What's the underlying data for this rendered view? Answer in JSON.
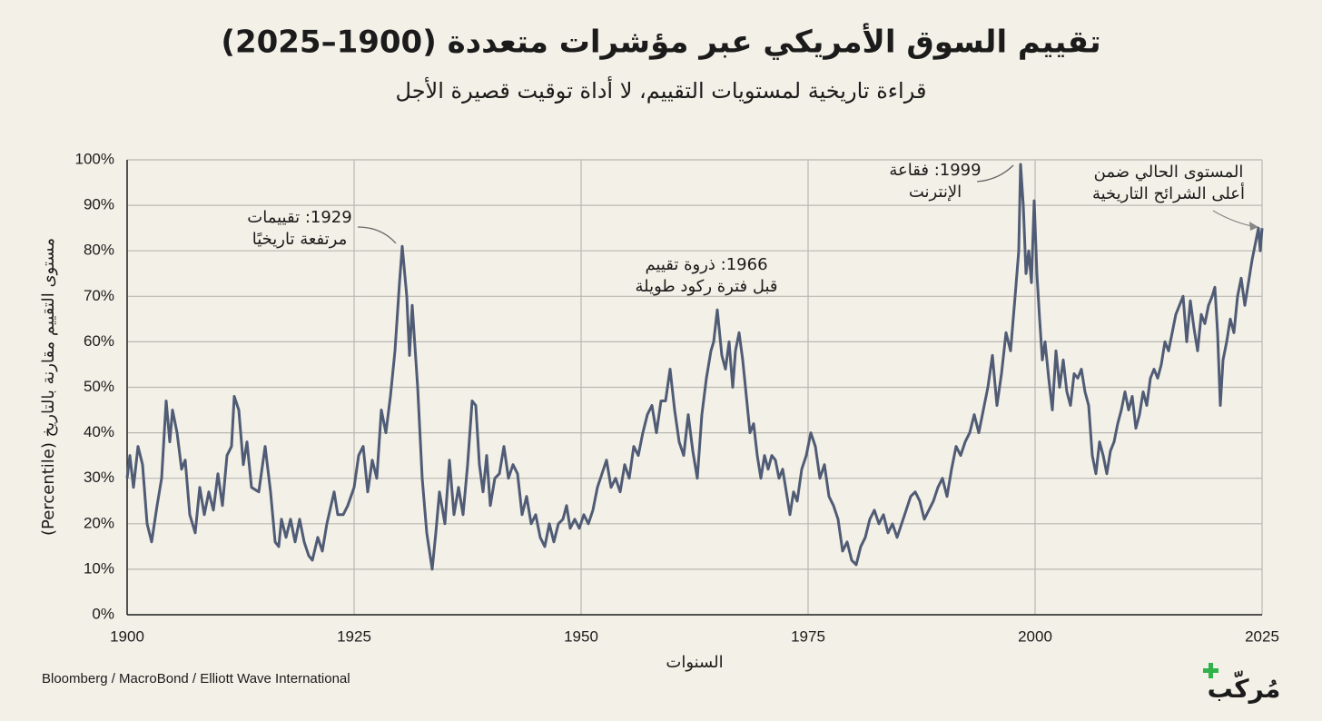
{
  "chart_data": {
    "type": "line",
    "title": "تقييم السوق الأمريكي عبر مؤشرات متعددة (1900–2025)",
    "subtitle": "قراءة تاريخية لمستويات التقييم، لا أداة توقيت قصيرة الأجل",
    "x_label": "السنوات",
    "y_label": "مستوى التقييم مقارنة بالتاريخ (Percentile)",
    "source": "Bloomberg / MacroBond / Elliott Wave International",
    "logo": "مُركّب",
    "color": "#505c75",
    "grid": true,
    "xlim": [
      1900,
      2025
    ],
    "xticks": [
      1900,
      1925,
      1950,
      1975,
      2000,
      2025
    ],
    "ylim": [
      0,
      100
    ],
    "yticks": [
      {
        "value": 0,
        "label": "0%"
      },
      {
        "value": 10,
        "label": "10%"
      },
      {
        "value": 20,
        "label": "20%"
      },
      {
        "value": 30,
        "label": "30%"
      },
      {
        "value": 40,
        "label": "40%"
      },
      {
        "value": 50,
        "label": "50%"
      },
      {
        "value": 60,
        "label": "60%"
      },
      {
        "value": 70,
        "label": "70%"
      },
      {
        "value": 80,
        "label": "80%"
      },
      {
        "value": 90,
        "label": "90%"
      },
      {
        "value": 100,
        "label": "100%"
      }
    ],
    "annotations": [
      {
        "lines": [
          "1929: تقييمات",
          "مرتفعة تاريخيًا"
        ]
      },
      {
        "lines": [
          "1966: ذروة تقييم",
          "قبل فترة ركود طويلة"
        ]
      },
      {
        "lines": [
          "1999: فقاعة",
          "الإنترنت"
        ]
      },
      {
        "lines": [
          "المستوى الحالي ضمن",
          "أعلى الشرائح التاريخية"
        ]
      }
    ],
    "x": [
      1900,
      1900.3,
      1900.7,
      1901.2,
      1901.7,
      1902.2,
      1902.7,
      1903.3,
      1903.8,
      1904.3,
      1904.7,
      1905.0,
      1905.5,
      1906.0,
      1906.4,
      1906.9,
      1907.5,
      1908.0,
      1908.5,
      1909.0,
      1909.5,
      1910.0,
      1910.5,
      1911.0,
      1911.5,
      1911.8,
      1912.3,
      1912.8,
      1913.2,
      1913.7,
      1914.5,
      1915.2,
      1915.8,
      1916.3,
      1916.7,
      1917.0,
      1917.5,
      1918.0,
      1918.5,
      1919.0,
      1919.5,
      1920.0,
      1920.4,
      1921.0,
      1921.5,
      1922.0,
      1922.8,
      1923.2,
      1923.8,
      1924.3,
      1925.0,
      1925.5,
      1926.0,
      1926.5,
      1927.0,
      1927.5,
      1928.0,
      1928.5,
      1929.0,
      1929.5,
      1930.0,
      1930.3,
      1930.8,
      1931.1,
      1931.4,
      1932.0,
      1932.5,
      1933.0,
      1933.6,
      1934.0,
      1934.4,
      1935.0,
      1935.5,
      1936.0,
      1936.5,
      1937.0,
      1937.5,
      1938.0,
      1938.4,
      1938.8,
      1939.2,
      1939.6,
      1940.0,
      1940.5,
      1941.0,
      1941.5,
      1942.0,
      1942.5,
      1943.0,
      1943.5,
      1944.0,
      1944.5,
      1945.0,
      1945.5,
      1946.0,
      1946.5,
      1947.0,
      1947.5,
      1948.0,
      1948.4,
      1948.8,
      1949.3,
      1949.8,
      1950.3,
      1950.8,
      1951.3,
      1951.8,
      1952.3,
      1952.8,
      1953.3,
      1953.8,
      1954.3,
      1954.8,
      1955.3,
      1955.8,
      1956.3,
      1956.8,
      1957.3,
      1957.8,
      1958.3,
      1958.8,
      1959.3,
      1959.8,
      1960.3,
      1960.8,
      1961.3,
      1961.8,
      1962.3,
      1962.8,
      1963.3,
      1963.8,
      1964.3,
      1964.6,
      1965.0,
      1965.5,
      1965.9,
      1966.3,
      1966.7,
      1967.0,
      1967.4,
      1967.8,
      1968.2,
      1968.6,
      1969.0,
      1969.4,
      1969.8,
      1970.2,
      1970.6,
      1971.0,
      1971.4,
      1971.8,
      1972.2,
      1972.6,
      1973.0,
      1973.4,
      1973.8,
      1974.3,
      1974.8,
      1975.3,
      1975.8,
      1976.3,
      1976.8,
      1977.3,
      1977.8,
      1978.3,
      1978.8,
      1979.3,
      1979.8,
      1980.3,
      1980.8,
      1981.3,
      1981.8,
      1982.3,
      1982.8,
      1983.3,
      1983.8,
      1984.3,
      1984.8,
      1985.3,
      1985.8,
      1986.3,
      1986.8,
      1987.3,
      1987.8,
      1988.3,
      1988.8,
      1989.3,
      1989.8,
      1990.3,
      1990.8,
      1991.3,
      1991.8,
      1992.3,
      1992.8,
      1993.3,
      1993.8,
      1994.3,
      1994.8,
      1995.3,
      1995.8,
      1996.3,
      1996.8,
      1997.3,
      1997.8,
      1998.2,
      1998.4,
      1998.7,
      1999.0,
      1999.3,
      1999.6,
      1999.9,
      2000.2,
      2000.5,
      2000.8,
      2001.1,
      2001.5,
      2001.9,
      2002.3,
      2002.7,
      2003.1,
      2003.5,
      2003.9,
      2004.3,
      2004.7,
      2005.1,
      2005.5,
      2005.9,
      2006.3,
      2006.7,
      2007.1,
      2007.5,
      2007.9,
      2008.3,
      2008.7,
      2009.1,
      2009.5,
      2009.9,
      2010.3,
      2010.7,
      2011.1,
      2011.5,
      2011.9,
      2012.3,
      2012.7,
      2013.1,
      2013.5,
      2013.9,
      2014.3,
      2014.7,
      2015.1,
      2015.5,
      2015.9,
      2016.3,
      2016.7,
      2017.1,
      2017.5,
      2017.9,
      2018.3,
      2018.7,
      2019.1,
      2019.5,
      2019.8,
      2020.1,
      2020.4,
      2020.7,
      2021.1,
      2021.5,
      2021.9,
      2022.3,
      2022.7,
      2023.1,
      2023.5,
      2023.9,
      2024.3,
      2024.6,
      2024.8,
      2025.0
    ],
    "values": [
      30,
      35,
      28,
      37,
      33,
      20,
      16,
      24,
      30,
      47,
      38,
      45,
      40,
      32,
      34,
      22,
      18,
      28,
      22,
      27,
      23,
      31,
      24,
      35,
      37,
      48,
      45,
      33,
      38,
      28,
      27,
      37,
      27,
      16,
      15,
      21,
      17,
      21,
      16,
      21,
      16,
      13,
      12,
      17,
      14,
      20,
      27,
      22,
      22,
      24,
      28,
      35,
      37,
      27,
      34,
      30,
      45,
      40,
      48,
      58,
      73,
      81,
      70,
      57,
      68,
      50,
      30,
      18,
      10,
      18,
      27,
      20,
      34,
      22,
      28,
      22,
      33,
      47,
      46,
      33,
      27,
      35,
      24,
      30,
      31,
      37,
      30,
      33,
      31,
      22,
      26,
      20,
      22,
      17,
      15,
      20,
      16,
      20,
      21,
      24,
      19,
      21,
      19,
      22,
      20,
      23,
      28,
      31,
      34,
      28,
      30,
      27,
      33,
      30,
      37,
      35,
      40,
      44,
      46,
      40,
      47,
      47,
      54,
      45,
      38,
      35,
      44,
      36,
      30,
      44,
      52,
      58,
      60,
      67,
      57,
      54,
      60,
      50,
      58,
      62,
      56,
      48,
      40,
      42,
      35,
      30,
      35,
      32,
      35,
      34,
      30,
      32,
      27,
      22,
      27,
      25,
      32,
      35,
      40,
      37,
      30,
      33,
      26,
      24,
      21,
      14,
      16,
      12,
      11,
      15,
      17,
      21,
      23,
      20,
      22,
      18,
      20,
      17,
      20,
      23,
      26,
      27,
      25,
      21,
      23,
      25,
      28,
      30,
      26,
      32,
      37,
      35,
      38,
      40,
      44,
      40,
      45,
      50,
      57,
      46,
      53,
      62,
      58,
      70,
      80,
      99,
      90,
      75,
      80,
      73,
      91,
      75,
      65,
      56,
      60,
      52,
      45,
      58,
      50,
      56,
      49,
      46,
      53,
      52,
      54,
      49,
      46,
      35,
      31,
      38,
      35,
      31,
      36,
      38,
      42,
      45,
      49,
      45,
      48,
      41,
      44,
      49,
      46,
      52,
      54,
      52,
      55,
      60,
      58,
      62,
      66,
      68,
      70,
      60,
      69,
      63,
      58,
      66,
      64,
      68,
      70,
      72,
      62,
      46,
      56,
      60,
      65,
      62,
      70,
      74,
      68,
      73,
      78,
      82,
      85,
      80,
      85
    ]
  }
}
